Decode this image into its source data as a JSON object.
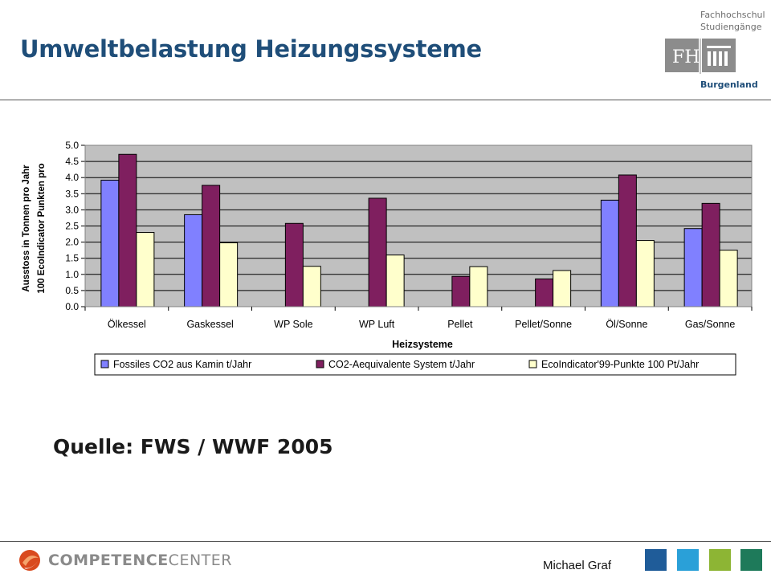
{
  "slide": {
    "title": "Umweltbelastung Heizungssysteme",
    "source_text": "Quelle: FWS / WWF 2005",
    "author": "Michael Graf"
  },
  "header_logo": {
    "line1": "Fachhochschul",
    "line2": "Studiengänge",
    "line3": "Burgenland"
  },
  "footer_logo": {
    "word1": "COMPETENCE",
    "word2": "CENTER"
  },
  "colors": {
    "title": "#1f4e79",
    "series1": "#8080ff",
    "series2": "#7f1f5f",
    "series3": "#ffffcc",
    "plot_bg": "#c0c0c0",
    "footer_squares": [
      "#1f5c99",
      "#2aa0d8",
      "#8db534",
      "#1e7a5a"
    ]
  },
  "chart_data": {
    "type": "bar",
    "xlabel": "Heizsysteme",
    "ylabel_lines": [
      "Ausstoss in Tonnen pro Jahr",
      "100 EcoIndicator Punkten pro"
    ],
    "ylim": [
      0,
      5
    ],
    "yticks": [
      "0.0",
      "0.5",
      "1.0",
      "1.5",
      "2.0",
      "2.5",
      "3.0",
      "3.5",
      "4.0",
      "4.5",
      "5.0"
    ],
    "grid": true,
    "legend_position": "bottom",
    "categories": [
      "Ölkessel",
      "Gaskessel",
      "WP Sole",
      "WP Luft",
      "Pellet",
      "Pellet/Sonne",
      "Öl/Sonne",
      "Gas/Sonne"
    ],
    "series": [
      {
        "name": "Fossiles CO2 aus Kamin t/Jahr",
        "values": [
          3.92,
          2.85,
          0,
          0,
          0,
          0,
          3.3,
          2.42
        ]
      },
      {
        "name": "CO2-Aequivalente System t/Jahr",
        "values": [
          4.72,
          3.76,
          2.58,
          3.36,
          0.94,
          0.86,
          4.08,
          3.2
        ]
      },
      {
        "name": "EcoIndicator'99-Punkte 100 Pt/Jahr",
        "values": [
          2.3,
          1.98,
          1.25,
          1.6,
          1.24,
          1.12,
          2.05,
          1.75
        ]
      }
    ]
  }
}
